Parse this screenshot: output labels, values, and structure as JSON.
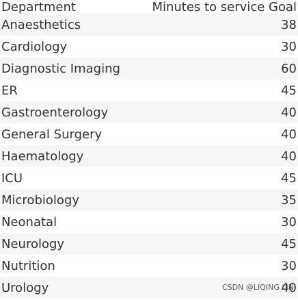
{
  "table": {
    "headers": {
      "department": "Department",
      "goal": "Minutes to service Goal"
    },
    "rows": [
      {
        "department": "Anaesthetics",
        "goal": "38"
      },
      {
        "department": "Cardiology",
        "goal": "30"
      },
      {
        "department": "Diagnostic Imaging",
        "goal": "60"
      },
      {
        "department": "ER",
        "goal": "45"
      },
      {
        "department": "Gastroenterology",
        "goal": "40"
      },
      {
        "department": "General Surgery",
        "goal": "40"
      },
      {
        "department": "Haematology",
        "goal": "40"
      },
      {
        "department": "ICU",
        "goal": "45"
      },
      {
        "department": "Microbiology",
        "goal": "35"
      },
      {
        "department": "Neonatal",
        "goal": "30"
      },
      {
        "department": "Neurology",
        "goal": "45"
      },
      {
        "department": "Nutrition",
        "goal": "30"
      },
      {
        "department": "Urology",
        "goal": "40"
      }
    ]
  },
  "watermark": "CSDN @LIQING LIN"
}
